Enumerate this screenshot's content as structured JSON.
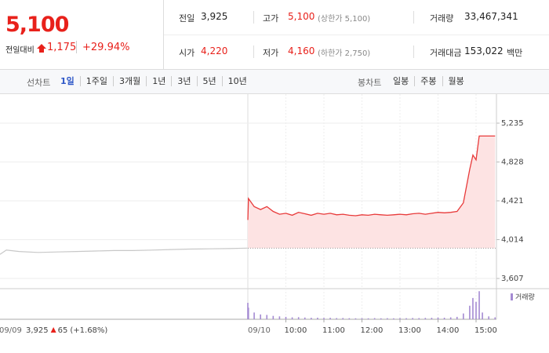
{
  "header": {
    "price": "5,100",
    "change_label": "전일대비",
    "change": "1,175",
    "change_rate": "+29.94%"
  },
  "info": [
    {
      "label": "전일",
      "value": "3,925"
    },
    {
      "label": "고가",
      "value": "5,100",
      "note": "(상한가 5,100)"
    },
    {
      "label": "거래량",
      "value": "33,467,341"
    },
    {
      "label": "시가",
      "value": "4,220"
    },
    {
      "label": "저가",
      "value": "4,160",
      "note": "(하한가 2,750)"
    },
    {
      "label": "거래대금",
      "value": "153,022",
      "unit": "백만"
    }
  ],
  "tabs": {
    "line_label": "선차트",
    "line_tabs": [
      "1일",
      "1주일",
      "3개월",
      "1년",
      "3년",
      "5년",
      "10년"
    ],
    "active_line_tab": 0,
    "candle_label": "봉차트",
    "candle_tabs": [
      "일봉",
      "주봉",
      "월봉"
    ]
  },
  "chart_data": {
    "type": "line",
    "ylim": [
      3607,
      5235
    ],
    "yticks": [
      {
        "value": 5235,
        "label": "5,235"
      },
      {
        "value": 4828,
        "label": "4,828"
      },
      {
        "value": 4421,
        "label": "4,421"
      },
      {
        "value": 4014,
        "label": "4,014"
      },
      {
        "value": 3607,
        "label": "3,607"
      }
    ],
    "baseline": 3925,
    "previous": {
      "date": "09/09",
      "color": "#c8c8c8",
      "x": [
        "09:00",
        "09:10",
        "09:30",
        "10:00",
        "10:30",
        "11:00",
        "11:30",
        "12:00",
        "12:30",
        "13:00",
        "13:30",
        "14:00",
        "14:30",
        "15:00",
        "15:30"
      ],
      "values": [
        3860,
        3905,
        3890,
        3880,
        3885,
        3890,
        3895,
        3900,
        3900,
        3905,
        3910,
        3915,
        3918,
        3920,
        3925
      ]
    },
    "today": {
      "date": "09/10",
      "color": "#e83a3a",
      "fill": "#fde3e3",
      "x": [
        "09:00",
        "09:01",
        "09:10",
        "09:20",
        "09:30",
        "09:40",
        "09:50",
        "10:00",
        "10:10",
        "10:20",
        "10:30",
        "10:40",
        "10:50",
        "11:00",
        "11:10",
        "11:20",
        "11:30",
        "11:40",
        "11:50",
        "12:00",
        "12:10",
        "12:20",
        "12:30",
        "12:40",
        "12:50",
        "13:00",
        "13:10",
        "13:20",
        "13:30",
        "13:40",
        "13:50",
        "14:00",
        "14:10",
        "14:20",
        "14:30",
        "14:40",
        "14:50",
        "14:55",
        "15:00",
        "15:05",
        "15:10",
        "15:20",
        "15:30"
      ],
      "values": [
        4220,
        4445,
        4360,
        4330,
        4360,
        4310,
        4280,
        4290,
        4270,
        4300,
        4285,
        4270,
        4290,
        4280,
        4290,
        4275,
        4280,
        4270,
        4265,
        4275,
        4270,
        4280,
        4275,
        4270,
        4275,
        4280,
        4275,
        4285,
        4290,
        4280,
        4290,
        4300,
        4295,
        4300,
        4310,
        4400,
        4750,
        4900,
        4850,
        5100,
        5100,
        5100,
        5100
      ]
    },
    "volume": {
      "name": "거래량",
      "color": "#a48ad2",
      "ylim": [
        0,
        3000000
      ],
      "values": [
        1700000,
        1200000,
        700000,
        500000,
        450000,
        350000,
        300000,
        250000,
        200000,
        220000,
        180000,
        150000,
        160000,
        140000,
        150000,
        120000,
        130000,
        110000,
        100000,
        110000,
        100000,
        120000,
        100000,
        110000,
        100000,
        120000,
        110000,
        130000,
        120000,
        140000,
        150000,
        180000,
        160000,
        200000,
        250000,
        600000,
        1400000,
        2200000,
        1800000,
        2900000,
        700000,
        300000,
        200000
      ]
    },
    "xticks": [
      "10:00",
      "11:00",
      "12:00",
      "13:00",
      "14:00",
      "15:00"
    ],
    "summary": {
      "date": "09/09",
      "close": "3,925",
      "change": "65",
      "rate": "(+1.68%)"
    }
  }
}
